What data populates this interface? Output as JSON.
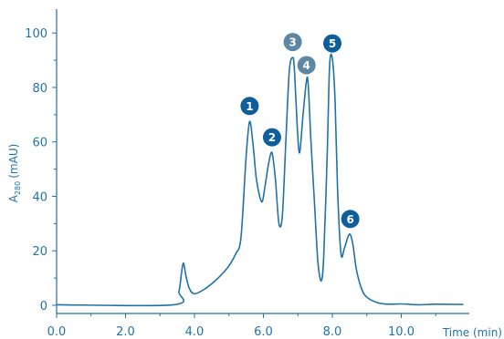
{
  "chart_data": {
    "type": "line",
    "title": "",
    "xlabel": "Time (min)",
    "ylabel": "A280 (mAU)",
    "ylabel_main": "A",
    "ylabel_sub": "280",
    "ylabel_unit": "(mAU)",
    "xlim": [
      0,
      11.8
    ],
    "ylim": [
      -2,
      110
    ],
    "x_ticks": [
      {
        "value": 0,
        "label": "0.0"
      },
      {
        "value": 2,
        "label": "2.0"
      },
      {
        "value": 4,
        "label": "4.0"
      },
      {
        "value": 6,
        "label": "6.0"
      },
      {
        "value": 8,
        "label": "8.0"
      },
      {
        "value": 10,
        "label": "10.0"
      }
    ],
    "y_ticks": [
      {
        "value": 0,
        "label": "0"
      },
      {
        "value": 20,
        "label": "20"
      },
      {
        "value": 40,
        "label": "40"
      },
      {
        "value": 60,
        "label": "60"
      },
      {
        "value": 80,
        "label": "80"
      },
      {
        "value": 100,
        "label": "100"
      }
    ],
    "grid": false,
    "series": [
      {
        "x": [
          0,
          3.4,
          3.55,
          3.62,
          3.68,
          3.75,
          3.85,
          4.0,
          4.3,
          4.6,
          4.8,
          5.0,
          5.2,
          5.35,
          5.5,
          5.6,
          5.7,
          5.8,
          5.95,
          6.05,
          6.15,
          6.25,
          6.35,
          6.45,
          6.55,
          6.65,
          6.75,
          6.85,
          6.9,
          6.98,
          7.05,
          7.15,
          7.25,
          7.3,
          7.38,
          7.48,
          7.58,
          7.68,
          7.75,
          7.85,
          7.92,
          8.0,
          8.08,
          8.15,
          8.25,
          8.35,
          8.45,
          8.52,
          8.6,
          8.7,
          8.85,
          9.0,
          9.3,
          9.6,
          10.0,
          10.5,
          11.0,
          11.8
        ],
        "y": [
          0.2,
          0.2,
          5.0,
          11.5,
          15.5,
          11.0,
          6.2,
          4.2,
          6.0,
          9.0,
          11.5,
          14.5,
          19.0,
          25.0,
          55.0,
          67.5,
          59.0,
          46.0,
          38.0,
          44.0,
          52.0,
          56.0,
          46.0,
          30.0,
          33.0,
          60.0,
          86.0,
          91.0,
          86.5,
          66.0,
          56.0,
          70.0,
          82.5,
          81.0,
          60.0,
          38.0,
          16.0,
          9.0,
          18.0,
          55.0,
          88.0,
          90.5,
          75.0,
          43.0,
          19.0,
          21.0,
          25.0,
          26.0,
          22.0,
          13.0,
          6.0,
          3.0,
          1.0,
          0.4,
          0.5,
          0.2,
          0.4,
          0.3
        ],
        "color": "#1f73a8"
      }
    ],
    "annotations": [
      {
        "label": "1",
        "x": 5.6,
        "y": 67.5,
        "style": "filled"
      },
      {
        "label": "2",
        "x": 6.25,
        "y": 56.0,
        "style": "filled"
      },
      {
        "label": "3",
        "x": 6.85,
        "y": 91.0,
        "style": "shaded"
      },
      {
        "label": "4",
        "x": 7.25,
        "y": 82.5,
        "style": "shaded"
      },
      {
        "label": "5",
        "x": 8.0,
        "y": 90.5,
        "style": "filled"
      },
      {
        "label": "6",
        "x": 8.52,
        "y": 26.0,
        "style": "filled"
      }
    ],
    "colors": {
      "line": "#1f73a8",
      "axis": "#1f73a8",
      "marker_filled": "#0f5e9c",
      "marker_shaded": "#5e87a5"
    }
  }
}
